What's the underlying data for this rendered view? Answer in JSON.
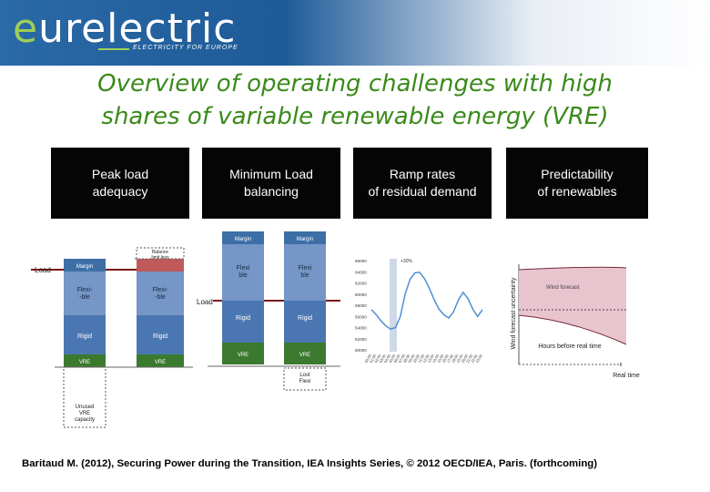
{
  "header": {
    "logo_first": "e",
    "logo_rest": "urelectric",
    "tagline": "ELECTRICITY FOR EUROPE"
  },
  "title": {
    "line1": "Overview of operating challenges with high",
    "line2": "shares of variable renewable energy (VRE)"
  },
  "panels": [
    {
      "line1": "Peak load",
      "line2": "adequacy"
    },
    {
      "line1": "Minimum Load",
      "line2": "balancing"
    },
    {
      "line1": "Ramp rates",
      "line2": "of residual demand"
    },
    {
      "line1": "Predictability",
      "line2": "of renewables"
    }
  ],
  "peak_load": {
    "load_label": "Load",
    "col1": {
      "margin": "Margin",
      "flexible": "Flexi-\n-ble",
      "rigid": "Rigid",
      "vre": "VRE",
      "unused": "Unused\nVRE\ncapacity"
    },
    "col2": {
      "top": "Balance\nlimit less",
      "flexible": "Flexi-\n-ble",
      "rigid": "Rigid",
      "vre": "VRE"
    }
  },
  "minimum_load": {
    "load_label": "Load",
    "col1": {
      "margin": "Margin",
      "flexible": "Flexi\nble",
      "rigid": "Rigid",
      "vre": "VRE"
    },
    "col2": {
      "margin": "Margin",
      "flexible": "Flexi\nble",
      "rigid": "Rigid",
      "vre": "VRE",
      "lost": "Lost\nFlexi"
    }
  },
  "ramp_chart": {
    "annotation": "+30%",
    "y_ticks": [
      "66000",
      "64000",
      "62000",
      "60000",
      "58000",
      "56000",
      "54000",
      "52000",
      "50000"
    ],
    "x_ticks": [
      "00:00",
      "01:00",
      "02:00",
      "03:00",
      "04:00",
      "05:00",
      "06:00",
      "07:00",
      "08:00",
      "09:00",
      "10:00",
      "11:00",
      "12:00",
      "13:00",
      "14:00",
      "15:00",
      "16:00",
      "17:00",
      "18:00",
      "19:00",
      "20:00",
      "21:00",
      "22:00",
      "23:00"
    ]
  },
  "chart_data": {
    "type": "line",
    "title": "",
    "xlabel": "",
    "ylabel": "",
    "ylim": [
      50000,
      66000
    ],
    "x": [
      "00:00",
      "01:00",
      "02:00",
      "03:00",
      "04:00",
      "05:00",
      "06:00",
      "07:00",
      "08:00",
      "09:00",
      "10:00",
      "11:00",
      "12:00",
      "13:00",
      "14:00",
      "15:00",
      "16:00",
      "17:00",
      "18:00",
      "19:00",
      "20:00",
      "21:00",
      "22:00",
      "23:00"
    ],
    "values": [
      57200,
      56300,
      55200,
      54300,
      53700,
      54000,
      56000,
      60000,
      62600,
      63800,
      63900,
      62800,
      61000,
      59000,
      57300,
      56300,
      55700,
      56800,
      58900,
      60300,
      59200,
      57300,
      56000,
      57200
    ],
    "color": "#4f8fd4"
  },
  "predictability": {
    "y_label": "Wind forecast uncertainty",
    "wind_forecast": "Wind forecast",
    "hours_before": "Hours before real time",
    "real_time": "Real time"
  },
  "citation": "Baritaud M. (2012), Securing Power during the Transition, IEA Insights Series, © 2012 OECD/IEA, Paris. (forthcoming)"
}
